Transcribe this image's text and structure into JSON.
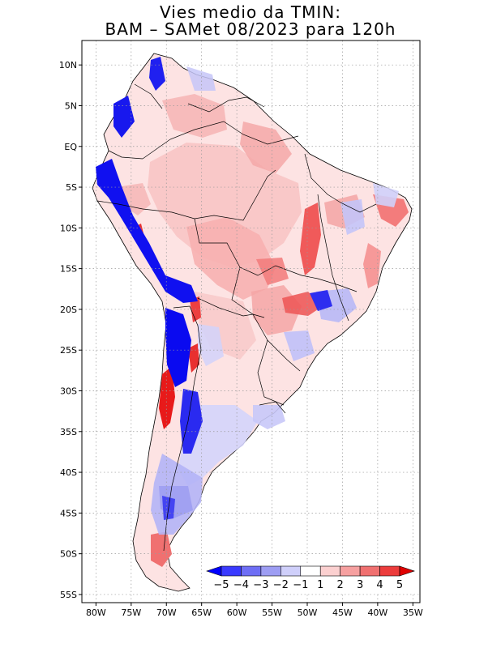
{
  "title": {
    "line1": "Vies medio da TMIN:",
    "line2": "BAM – SAMet 08/2023  para 120h"
  },
  "axes": {
    "lat_ticks": [
      "10N",
      "5N",
      "EQ",
      "5S",
      "10S",
      "15S",
      "20S",
      "25S",
      "30S",
      "35S",
      "40S",
      "45S",
      "50S",
      "55S"
    ],
    "lon_ticks": [
      "80W",
      "75W",
      "70W",
      "65W",
      "60W",
      "55W",
      "50W",
      "45W",
      "40W",
      "35W"
    ],
    "lon_range": [
      -82,
      -34
    ],
    "lat_range": [
      -56,
      13
    ]
  },
  "colorbar": {
    "labels": [
      "−5",
      "−4",
      "−3",
      "−2",
      "−1",
      "1",
      "2",
      "3",
      "4",
      "5"
    ],
    "colors": [
      "#0000ff",
      "#3a3aff",
      "#6e6ef5",
      "#9d9df3",
      "#cfcffa",
      "#ffffff",
      "#fbd0d0",
      "#f6a0a0",
      "#f07070",
      "#ec3c3c",
      "#e00000"
    ]
  },
  "colors": {
    "frame": "#000000",
    "grid": "#9a9a9a",
    "ocean": "#ffffff",
    "land_base": "#fdf0f0"
  }
}
